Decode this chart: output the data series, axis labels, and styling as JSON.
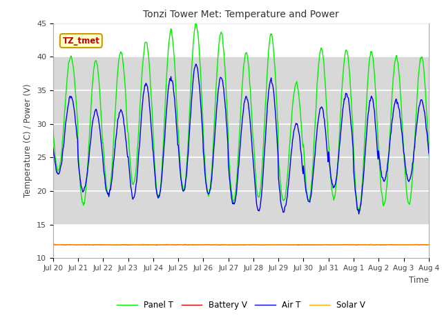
{
  "title": "Tonzi Tower Met: Temperature and Power",
  "ylabel": "Temperature (C) / Power (V)",
  "xlabel": "Time",
  "annotation": "TZ_tmet",
  "ylim": [
    10,
    45
  ],
  "xlim": [
    0,
    360
  ],
  "xtick_labels": [
    "Jul 20",
    "Jul 21",
    "Jul 22",
    "Jul 23",
    "Jul 24",
    "Jul 25",
    "Jul 26",
    "Jul 27",
    "Jul 28",
    "Jul 29",
    "Jul 30",
    "Jul 31",
    "Aug 1",
    "Aug 2",
    "Aug 3",
    "Aug 4"
  ],
  "xtick_positions": [
    0,
    24,
    48,
    72,
    96,
    120,
    144,
    168,
    192,
    216,
    240,
    264,
    288,
    312,
    336,
    360
  ],
  "ytick_labels": [
    "10",
    "15",
    "20",
    "25",
    "30",
    "35",
    "40",
    "45"
  ],
  "ytick_positions": [
    10,
    15,
    20,
    25,
    30,
    35,
    40,
    45
  ],
  "legend": [
    "Panel T",
    "Battery V",
    "Air T",
    "Solar V"
  ],
  "legend_colors": [
    "#00ee00",
    "#dd0000",
    "#0000ee",
    "#ffaa00"
  ],
  "fig_bg_color": "#ffffff",
  "axes_bg_color": "#ffffff",
  "shaded_bg_color": "#d8d8d8",
  "shaded_ymin": 15,
  "shaded_ymax": 40,
  "grid_color": "#ffffff",
  "annotation_bg": "#ffffcc",
  "annotation_fg": "#bb0000",
  "panel_T_peaks": [
    40.0,
    39.5,
    40.8,
    42.2,
    43.8,
    44.8,
    43.5,
    40.5,
    43.3,
    36.1,
    41.2,
    41.0,
    40.8,
    40.0,
    40.0
  ],
  "panel_T_troughs": [
    23.0,
    18.0,
    19.5,
    21.0,
    19.0,
    20.0,
    19.5,
    18.5,
    19.0,
    18.5,
    18.5,
    19.0,
    17.0,
    18.0,
    18.0
  ],
  "air_T_peaks": [
    34.0,
    32.0,
    32.0,
    36.0,
    37.0,
    38.8,
    37.0,
    34.0,
    36.6,
    30.0,
    32.5,
    34.5,
    34.0,
    33.5,
    33.5
  ],
  "air_T_troughs": [
    22.5,
    20.0,
    19.5,
    19.0,
    19.0,
    20.0,
    19.5,
    18.0,
    17.0,
    17.0,
    18.5,
    20.5,
    17.0,
    21.5,
    21.5
  ],
  "battery_V": 12.0,
  "solar_V": 12.0
}
